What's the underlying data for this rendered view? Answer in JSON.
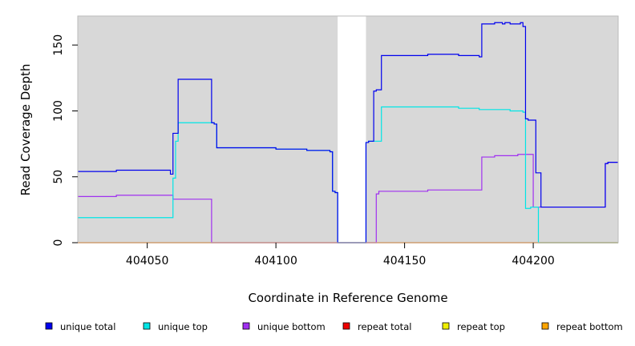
{
  "chart_data": {
    "type": "line",
    "xlabel": "Coordinate in Reference Genome",
    "ylabel": "Read Coverage Depth",
    "xlim": [
      404023,
      404233
    ],
    "ylim": [
      0,
      172
    ],
    "xticks": [
      404050,
      404100,
      404150,
      404200
    ],
    "yticks": [
      0,
      50,
      100,
      150
    ],
    "background": "#d8d8d8",
    "gap_region": [
      404124,
      404135
    ],
    "legend_position": "bottom",
    "series": [
      {
        "name": "unique total",
        "color": "#0000ee",
        "points": [
          [
            404023,
            54
          ],
          [
            404038,
            54
          ],
          [
            404038,
            55
          ],
          [
            404059,
            55
          ],
          [
            404059,
            52
          ],
          [
            404060,
            52
          ],
          [
            404060,
            83
          ],
          [
            404062,
            83
          ],
          [
            404062,
            124
          ],
          [
            404075,
            124
          ],
          [
            404075,
            91
          ],
          [
            404076,
            91
          ],
          [
            404076,
            90
          ],
          [
            404077,
            90
          ],
          [
            404077,
            72
          ],
          [
            404100,
            72
          ],
          [
            404100,
            71
          ],
          [
            404112,
            71
          ],
          [
            404112,
            70
          ],
          [
            404121,
            70
          ],
          [
            404121,
            69
          ],
          [
            404122,
            69
          ],
          [
            404122,
            39
          ],
          [
            404123,
            39
          ],
          [
            404123,
            38
          ],
          [
            404124,
            38
          ],
          [
            404124,
            0
          ],
          [
            404135,
            0
          ],
          [
            404135,
            76
          ],
          [
            404136,
            76
          ],
          [
            404136,
            77
          ],
          [
            404138,
            77
          ],
          [
            404138,
            115
          ],
          [
            404139,
            115
          ],
          [
            404139,
            116
          ],
          [
            404141,
            116
          ],
          [
            404141,
            142
          ],
          [
            404159,
            142
          ],
          [
            404159,
            143
          ],
          [
            404171,
            143
          ],
          [
            404171,
            142
          ],
          [
            404179,
            142
          ],
          [
            404179,
            141
          ],
          [
            404180,
            141
          ],
          [
            404180,
            166
          ],
          [
            404185,
            166
          ],
          [
            404185,
            167
          ],
          [
            404188,
            167
          ],
          [
            404188,
            166
          ],
          [
            404189,
            166
          ],
          [
            404189,
            167
          ],
          [
            404191,
            167
          ],
          [
            404191,
            166
          ],
          [
            404195,
            166
          ],
          [
            404195,
            167
          ],
          [
            404196,
            167
          ],
          [
            404196,
            164
          ],
          [
            404197,
            164
          ],
          [
            404197,
            94
          ],
          [
            404198,
            94
          ],
          [
            404198,
            93
          ],
          [
            404201,
            93
          ],
          [
            404201,
            53
          ],
          [
            404203,
            53
          ],
          [
            404203,
            27
          ],
          [
            404228,
            27
          ],
          [
            404228,
            60
          ],
          [
            404229,
            60
          ],
          [
            404229,
            61
          ],
          [
            404233,
            61
          ]
        ]
      },
      {
        "name": "unique top",
        "color": "#00e5e5",
        "points": [
          [
            404023,
            19
          ],
          [
            404060,
            19
          ],
          [
            404060,
            49
          ],
          [
            404061,
            49
          ],
          [
            404061,
            77
          ],
          [
            404062,
            77
          ],
          [
            404062,
            91
          ],
          [
            404075,
            91
          ],
          [
            404075,
            91
          ],
          [
            404076,
            91
          ],
          [
            404076,
            90
          ],
          [
            404077,
            90
          ],
          [
            404077,
            72
          ],
          [
            404100,
            72
          ],
          [
            404100,
            71
          ],
          [
            404112,
            71
          ],
          [
            404112,
            70
          ],
          [
            404121,
            70
          ],
          [
            404121,
            69
          ],
          [
            404122,
            69
          ],
          [
            404122,
            39
          ],
          [
            404123,
            39
          ],
          [
            404123,
            38
          ],
          [
            404124,
            38
          ],
          [
            404124,
            0
          ],
          [
            404135,
            0
          ],
          [
            404135,
            76
          ],
          [
            404136,
            76
          ],
          [
            404136,
            77
          ],
          [
            404141,
            77
          ],
          [
            404141,
            103
          ],
          [
            404171,
            103
          ],
          [
            404171,
            102
          ],
          [
            404179,
            102
          ],
          [
            404179,
            101
          ],
          [
            404191,
            101
          ],
          [
            404191,
            100
          ],
          [
            404196,
            100
          ],
          [
            404196,
            99
          ],
          [
            404197,
            99
          ],
          [
            404197,
            26
          ],
          [
            404199,
            26
          ],
          [
            404199,
            27
          ],
          [
            404202,
            27
          ],
          [
            404202,
            0
          ],
          [
            404233,
            0
          ]
        ]
      },
      {
        "name": "unique bottom",
        "color": "#a030f0",
        "points": [
          [
            404023,
            35
          ],
          [
            404038,
            35
          ],
          [
            404038,
            36
          ],
          [
            404060,
            36
          ],
          [
            404060,
            33
          ],
          [
            404075,
            33
          ],
          [
            404075,
            0
          ],
          [
            404139,
            0
          ],
          [
            404139,
            37
          ],
          [
            404140,
            37
          ],
          [
            404140,
            39
          ],
          [
            404159,
            39
          ],
          [
            404159,
            40
          ],
          [
            404180,
            40
          ],
          [
            404180,
            65
          ],
          [
            404185,
            65
          ],
          [
            404185,
            66
          ],
          [
            404194,
            66
          ],
          [
            404194,
            67
          ],
          [
            404200,
            67
          ],
          [
            404200,
            27
          ],
          [
            404228,
            27
          ],
          [
            404228,
            60
          ],
          [
            404229,
            60
          ],
          [
            404229,
            61
          ],
          [
            404233,
            61
          ]
        ]
      },
      {
        "name": "repeat total",
        "color": "#ee0000",
        "points": [
          [
            404023,
            0
          ],
          [
            404233,
            0
          ]
        ]
      },
      {
        "name": "repeat top",
        "color": "#eeee00",
        "points": [
          [
            404023,
            0
          ],
          [
            404233,
            0
          ]
        ]
      },
      {
        "name": "repeat bottom",
        "color": "#ffa500",
        "points": [
          [
            404023,
            0
          ],
          [
            404233,
            0
          ]
        ]
      }
    ]
  }
}
